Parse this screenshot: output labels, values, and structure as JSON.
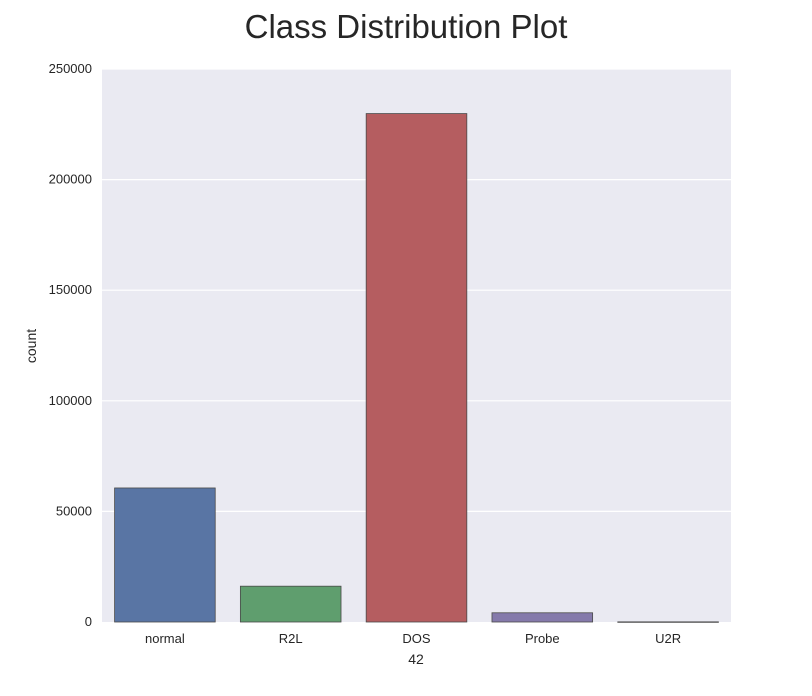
{
  "chart_data": {
    "type": "bar",
    "title": "Class Distribution Plot",
    "xlabel": "42",
    "ylabel": "count",
    "categories": [
      "normal",
      "R2L",
      "DOS",
      "Probe",
      "U2R"
    ],
    "values": [
      60593,
      16189,
      229853,
      4166,
      70
    ],
    "ylim": [
      0,
      250000
    ],
    "yticks": [
      0,
      50000,
      100000,
      150000,
      200000,
      250000
    ],
    "ytick_labels": [
      "0",
      "50000",
      "100000",
      "150000",
      "200000",
      "250000"
    ],
    "grid": true,
    "legend": "none",
    "colors": [
      "#5975a4",
      "#5f9e6e",
      "#b55d60",
      "#857aab",
      "#8d7866"
    ],
    "background_color": "#eaeaf2",
    "grid_color": "#ffffff",
    "bar_edge_color": "#4a4a4a"
  }
}
